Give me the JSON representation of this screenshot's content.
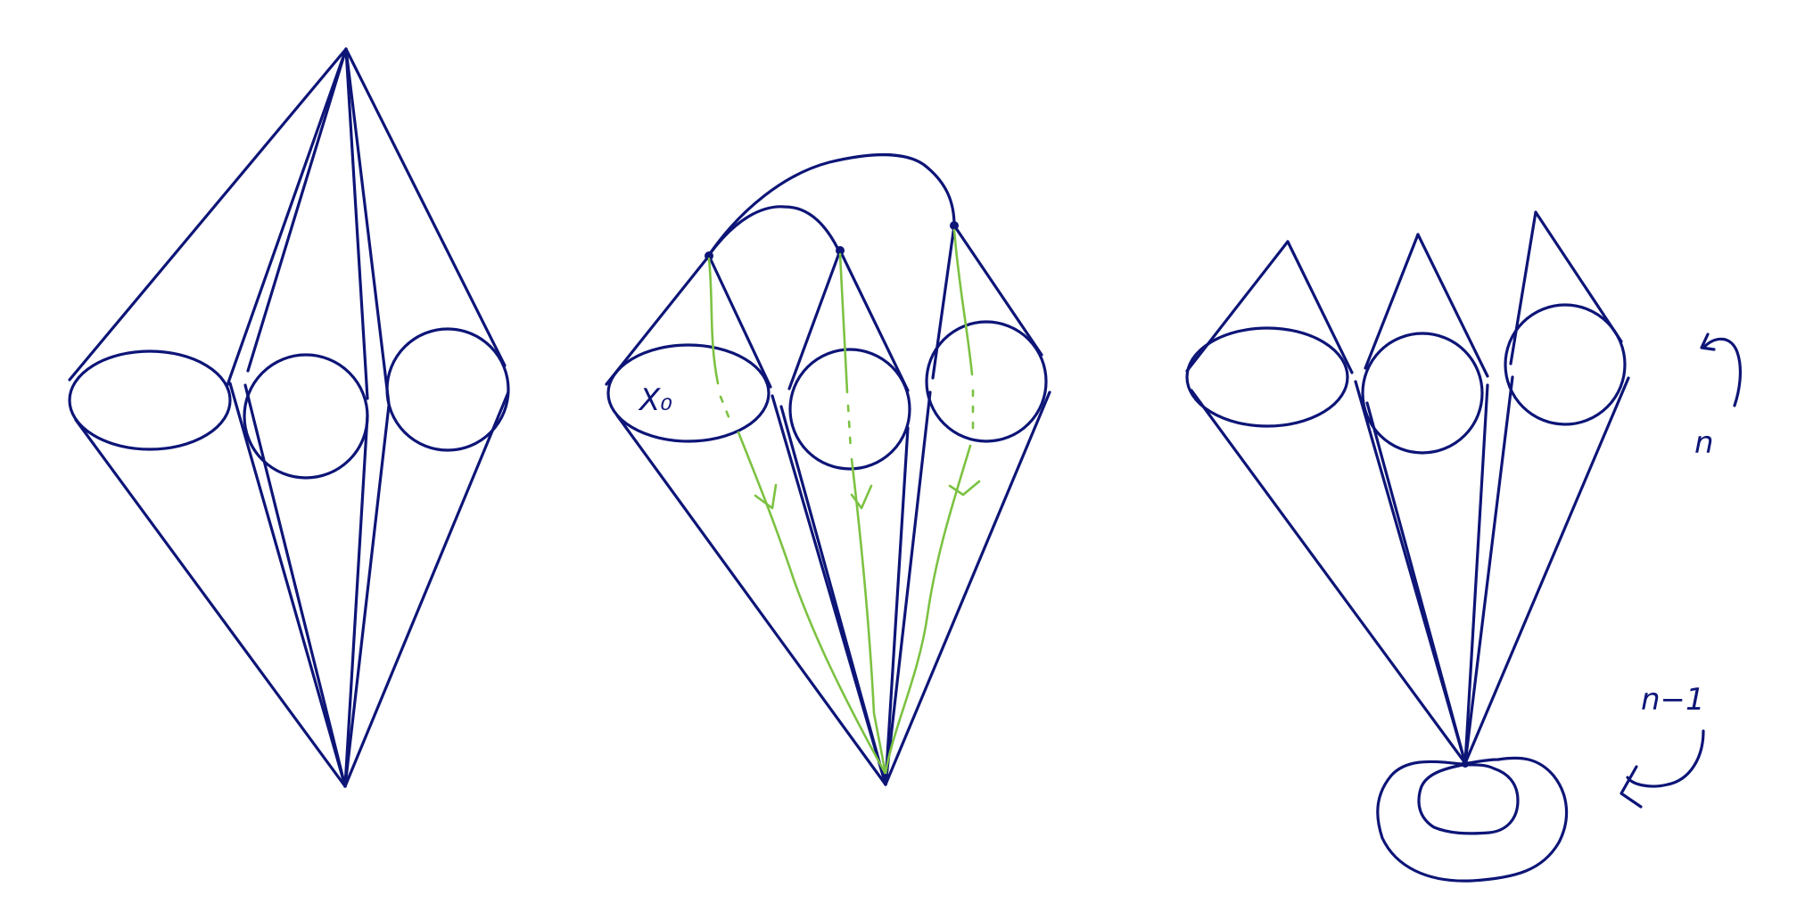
{
  "colors": {
    "ink": "#0d1577",
    "flow": "#7cc242",
    "background": "#ffffff"
  },
  "figures": [
    {
      "id": "suspension-double-cone",
      "description_tag": "left"
    },
    {
      "id": "cone-to-point-with-flow",
      "description_tag": "middle"
    },
    {
      "id": "cones-to-torus",
      "description_tag": "right"
    }
  ],
  "labels": {
    "x0": "X₀",
    "n": "n",
    "n_minus_1": "n−1"
  }
}
